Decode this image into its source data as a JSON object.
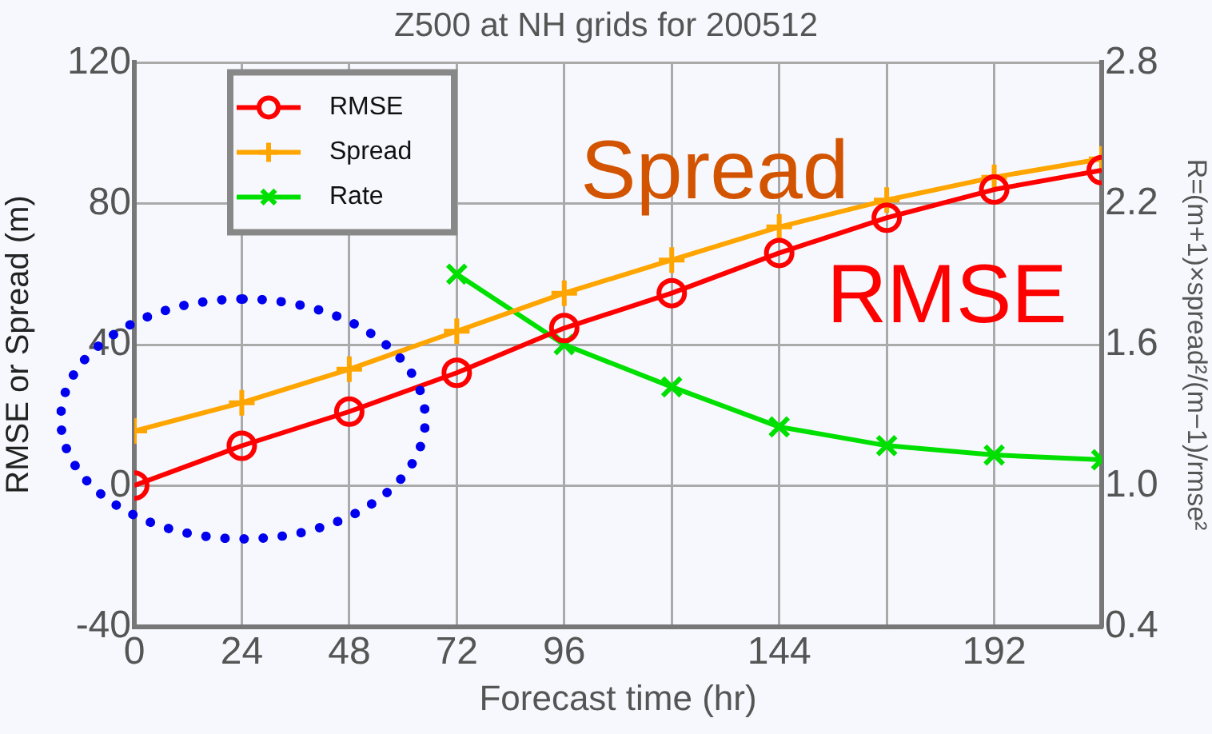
{
  "chart_data": {
    "type": "line",
    "title": "Z500 at NH grids for 200512",
    "xlabel": "Forecast time (hr)",
    "ylabel": "RMSE or Spread (m)",
    "y2label": "R=(m+1)×spread²/(m−1)/rmse²",
    "x": [
      0,
      24,
      48,
      72,
      96,
      120,
      144,
      168,
      192,
      216
    ],
    "series": [
      {
        "name": "RMSE",
        "color": "#ff0000",
        "marker": "circle",
        "values": [
          0,
          11.3,
          21,
          32,
          44.7,
          54.6,
          66,
          76,
          84,
          89.5
        ]
      },
      {
        "name": "Spread",
        "color": "#ffa500",
        "marker": "cross",
        "values": [
          15.5,
          23.5,
          33,
          43.8,
          54.6,
          64,
          73.4,
          81,
          87.5,
          92.7
        ]
      },
      {
        "name": "Rate",
        "color": "#00e000",
        "marker": "x",
        "axis": "y2",
        "values": [
          null,
          null,
          null,
          1.9,
          1.6,
          1.42,
          1.25,
          1.17,
          1.13,
          1.11
        ]
      }
    ],
    "xlim": [
      0,
      216
    ],
    "xticks": [
      0,
      24,
      48,
      72,
      96,
      {
        "value": 120,
        "label": null
      },
      144,
      {
        "value": 168,
        "label": null
      },
      192,
      {
        "value": 216,
        "label": null
      }
    ],
    "ylim": [
      -40,
      120
    ],
    "yticks": [
      -40,
      0,
      40,
      80,
      120
    ],
    "y2lim": [
      0.4,
      2.8
    ],
    "y2ticks": [
      0.4,
      {
        "value": 1,
        "label": "1.0"
      },
      1.6,
      2.2,
      2.8
    ],
    "annotations": [
      "Spread",
      "RMSE"
    ],
    "grid": true,
    "legend": "top left",
    "line_style": "solid"
  }
}
